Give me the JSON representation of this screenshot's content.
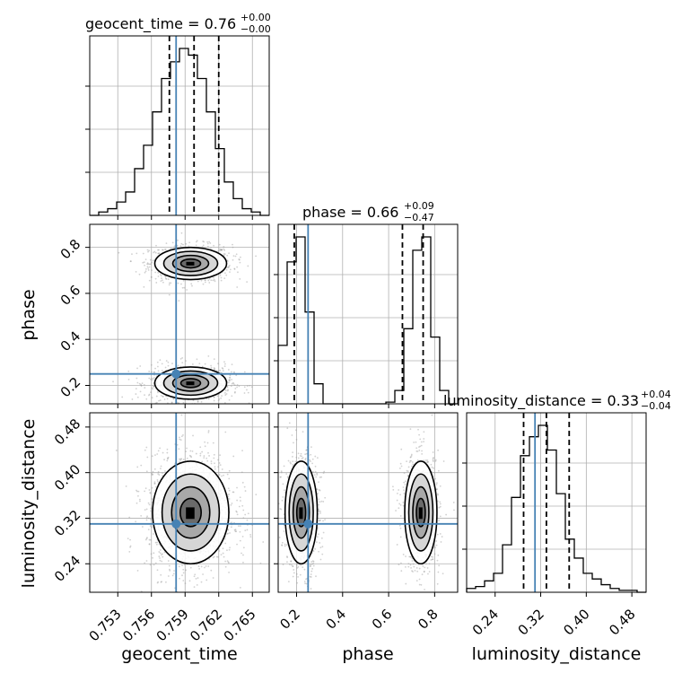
{
  "chart_data": {
    "type": "corner",
    "parameters": [
      "geocent_time",
      "phase",
      "luminosity_distance"
    ],
    "titles": [
      {
        "param": "geocent_time",
        "median": "0.76",
        "plus": "+0.00",
        "minus": "−0.00"
      },
      {
        "param": "phase",
        "median": "0.66",
        "plus": "+0.09",
        "minus": "−0.47"
      },
      {
        "param": "luminosity_distance",
        "median": "0.33",
        "plus": "+0.04",
        "minus": "−0.04"
      }
    ],
    "ranges": {
      "geocent_time": [
        0.7505,
        0.7665
      ],
      "phase": [
        0.12,
        0.9
      ],
      "luminosity_distance": [
        0.19,
        0.505
      ]
    },
    "ticks": {
      "geocent_time": [
        0.753,
        0.756,
        0.759,
        0.762,
        0.765
      ],
      "phase": [
        0.2,
        0.4,
        0.6,
        0.8
      ],
      "luminosity_distance": [
        0.24,
        0.32,
        0.4,
        0.48
      ]
    },
    "tick_labels": {
      "geocent_time": [
        "0.753",
        "0.756",
        "0.759",
        "0.762",
        "0.765"
      ],
      "phase": [
        "0.2",
        "0.4",
        "0.6",
        "0.8"
      ],
      "luminosity_distance": [
        "0.24",
        "0.32",
        "0.40",
        "0.48"
      ]
    },
    "truths": {
      "geocent_time": 0.7582,
      "phase": 0.25,
      "luminosity_distance": 0.31
    },
    "quantiles": {
      "geocent_time": [
        0.7576,
        0.7598,
        0.762
      ],
      "phase": [
        0.19,
        0.66,
        0.75
      ],
      "luminosity_distance": [
        0.29,
        0.33,
        0.37
      ]
    },
    "histograms": {
      "geocent_time": {
        "edges_start": 0.7505,
        "bin_width": 0.0008,
        "counts": [
          0,
          2,
          4,
          8,
          14,
          28,
          42,
          62,
          82,
          92,
          100,
          96,
          82,
          62,
          40,
          20,
          10,
          4,
          2,
          0
        ]
      },
      "phase": {
        "edges_start": 0.12,
        "bin_width": 0.039,
        "counts": [
          35,
          85,
          100,
          55,
          12,
          0,
          0,
          0,
          0,
          0,
          0,
          0,
          1,
          8,
          45,
          92,
          100,
          40,
          8,
          0
        ]
      },
      "luminosity_distance": {
        "edges_start": 0.19,
        "bin_width": 0.01575,
        "counts": [
          2,
          3,
          6,
          10,
          25,
          50,
          72,
          82,
          88,
          75,
          52,
          28,
          18,
          10,
          7,
          4,
          2,
          1,
          1,
          0
        ]
      }
    },
    "grid": true
  }
}
